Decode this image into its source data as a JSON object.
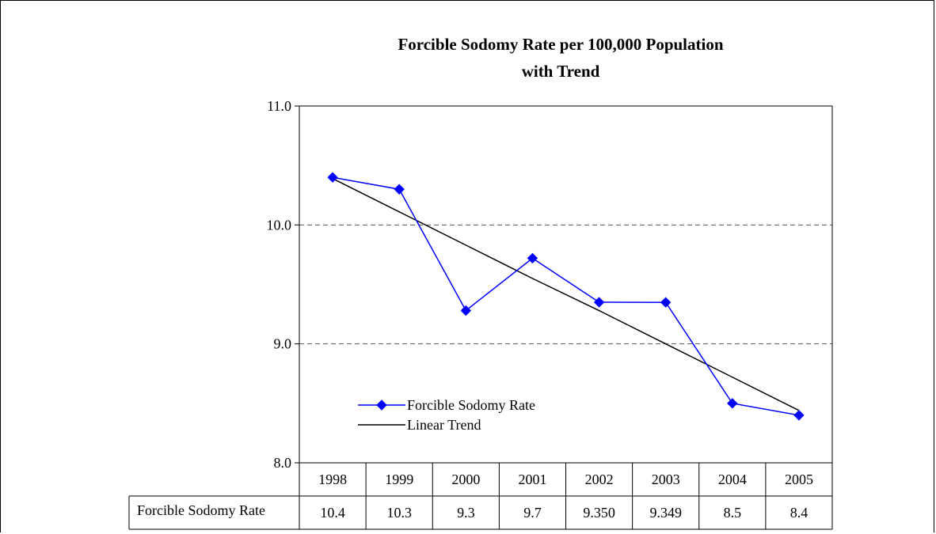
{
  "chart_data": {
    "type": "line",
    "title": [
      "Forcible Sodomy Rate per 100,000 Population",
      "with Trend"
    ],
    "categories": [
      "1998",
      "1999",
      "2000",
      "2001",
      "2002",
      "2003",
      "2004",
      "2005"
    ],
    "ylim": [
      8.0,
      11.0
    ],
    "yticks": [
      "11.0",
      "10.0",
      "9.0",
      "8.0"
    ],
    "ytick_values": [
      11.0,
      10.0,
      9.0,
      8.0
    ],
    "grid": "horizontal dashed",
    "legend_position": "lower-left inside plot",
    "series": [
      {
        "name": "Forcible Sodomy Rate",
        "values": [
          10.4,
          10.3,
          9.28,
          9.72,
          9.35,
          9.349,
          8.5,
          8.4
        ],
        "color": "#0000ff",
        "marker": "diamond"
      },
      {
        "name": "Linear Trend",
        "values": [
          10.39,
          10.11,
          9.83,
          9.55,
          9.28,
          9.0,
          8.72,
          8.44
        ],
        "color": "#000000",
        "marker": "none"
      }
    ],
    "table": {
      "row_label": "Forcible Sodomy Rate",
      "values": [
        "10.4",
        "10.3",
        "9.3",
        "9.7",
        "9.350",
        "9.349",
        "8.5",
        "8.4"
      ]
    }
  }
}
